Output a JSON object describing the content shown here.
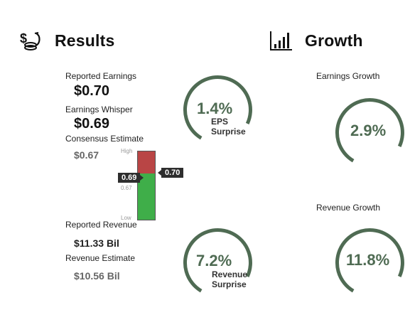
{
  "colors": {
    "gauge_arc": "#4f6b53",
    "high_zone": "#b94545",
    "low_zone": "#3fae49",
    "marker": "#2e2e2e"
  },
  "results": {
    "title": "Results",
    "icon": "coins-money-icon",
    "reported_earnings_label": "Reported Earnings",
    "reported_earnings_value": "$0.70",
    "earnings_whisper_label": "Earnings Whisper",
    "earnings_whisper_value": "$0.69",
    "consensus_estimate_label": "Consensus Estimate",
    "consensus_estimate_value": "$0.67",
    "reported_revenue_label": "Reported Revenue",
    "reported_revenue_value": "$11.33 Bil",
    "revenue_estimate_label": "Revenue Estimate",
    "revenue_estimate_value": "$10.56 Bil",
    "eps_surprise": {
      "percent": "1.4%",
      "line1": "EPS",
      "line2": "Surprise"
    },
    "revenue_surprise": {
      "percent": "7.2%",
      "line1": "Revenue",
      "line2": "Surprise"
    },
    "range": {
      "high_label": "High",
      "low_label": "Low",
      "consensus_tick": "0.67",
      "whisper_marker": "0.69",
      "actual_marker": "0.70"
    }
  },
  "growth": {
    "title": "Growth",
    "icon": "bar-chart-icon",
    "earnings_growth_label": "Earnings Growth",
    "earnings_growth_value": "2.9%",
    "revenue_growth_label": "Revenue Growth",
    "revenue_growth_value": "11.8%"
  }
}
